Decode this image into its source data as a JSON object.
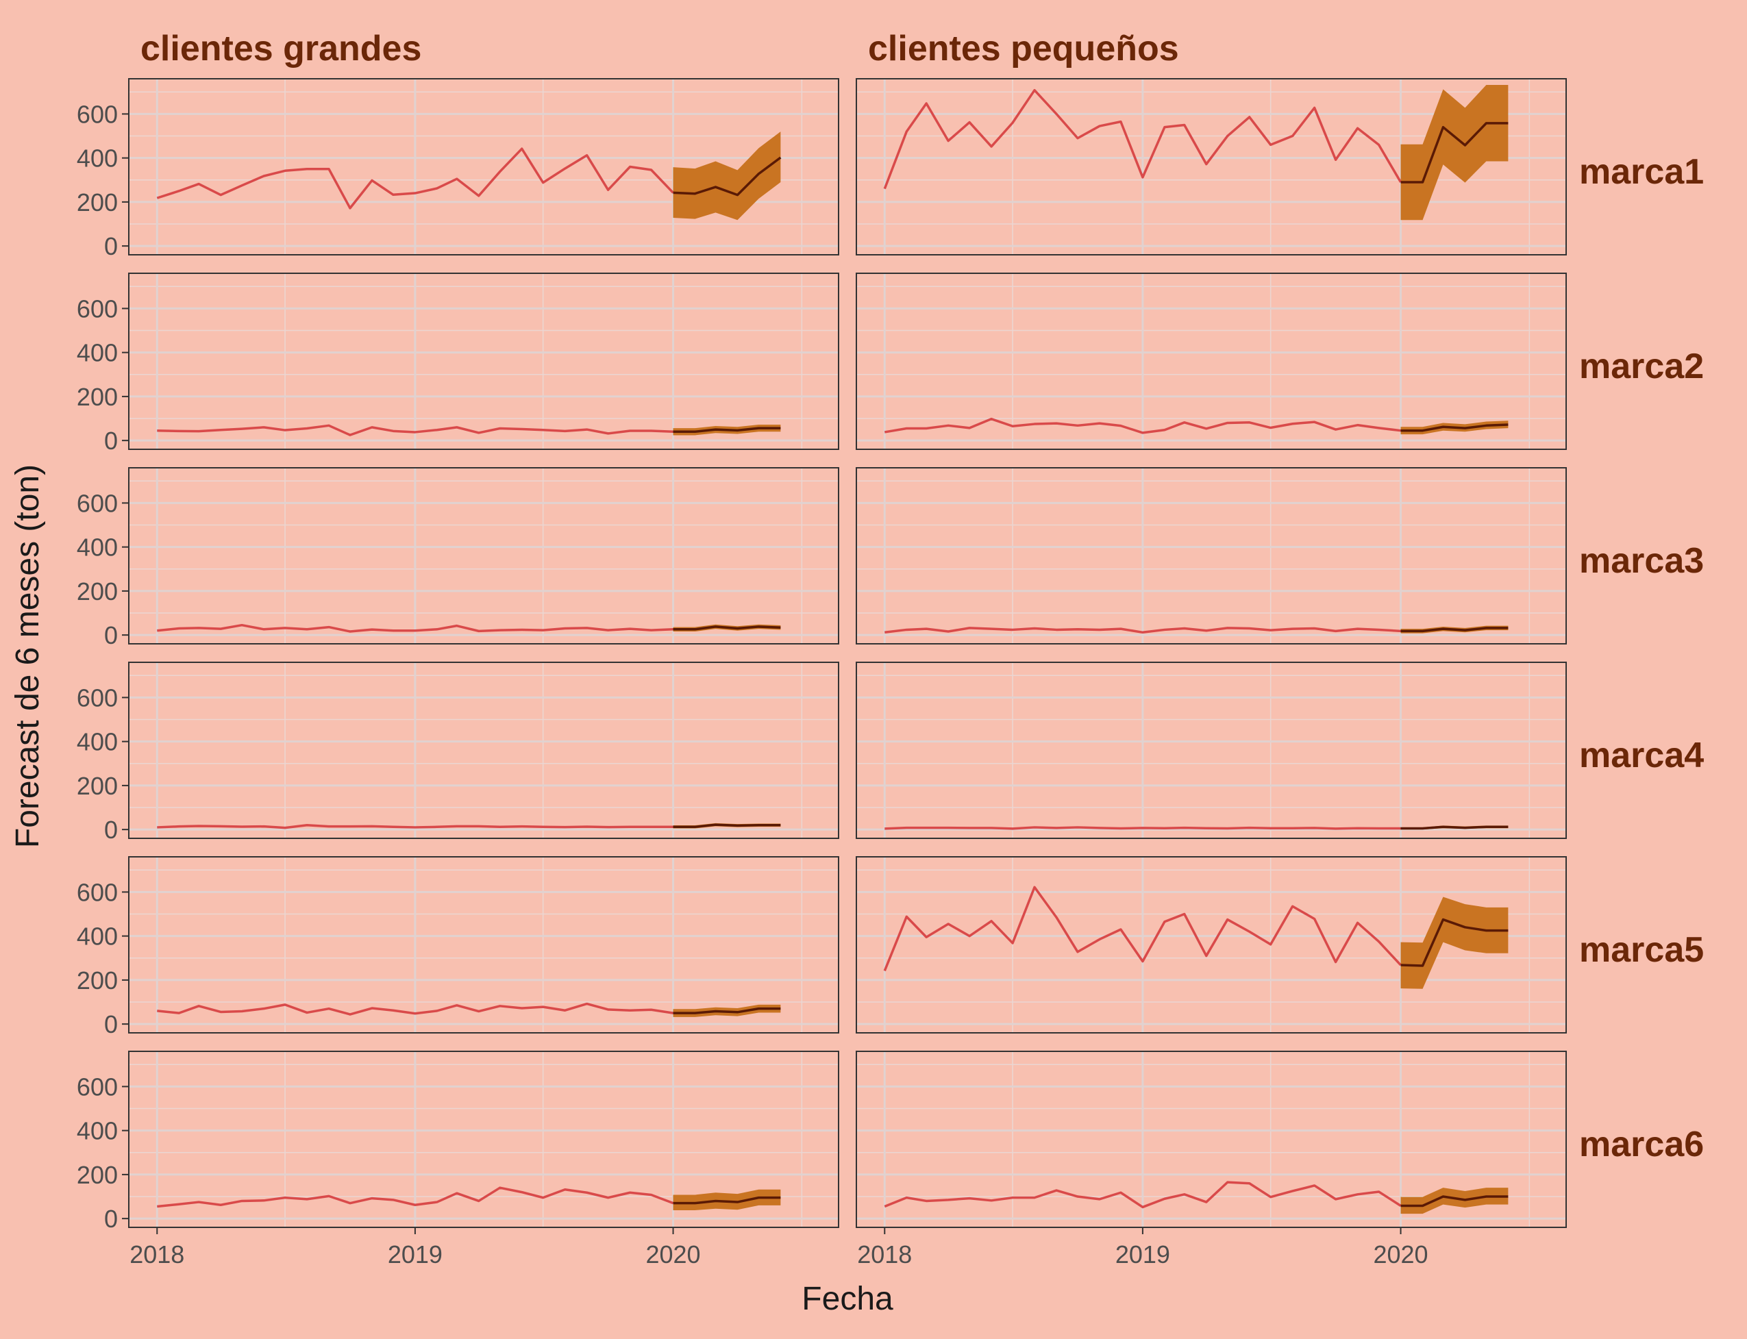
{
  "colors": {
    "background": "#F8C0B0",
    "panel_border": "#333333",
    "grid": "#E1D2D0",
    "grid_minor": "#EBD6D2",
    "history_line": "#D94A4A",
    "forecast_band": "#C97422",
    "forecast_line": "#5A1A05",
    "strip_text": "#6B2708",
    "tick_text": "#4D4D4D",
    "axis_title": "#1A1A1A"
  },
  "chart_data": {
    "type": "line",
    "title": "",
    "xlabel": "Fecha",
    "ylabel": "Forecast de 6 meses (ton)",
    "xlim": [
      "2017-11-22",
      "2020-08-22"
    ],
    "ylim": [
      -40,
      760
    ],
    "x_ticks": [
      "2018",
      "2019",
      "2020"
    ],
    "y_ticks": [
      0,
      200,
      400,
      600
    ],
    "grid": true,
    "legend": "none",
    "facet_cols": [
      "clientes grandes",
      "clientes pequeños"
    ],
    "facet_rows": [
      "marca1",
      "marca2",
      "marca3",
      "marca4",
      "marca5",
      "marca6"
    ],
    "history_dates": [
      "2018-01",
      "2018-02",
      "2018-03",
      "2018-04",
      "2018-05",
      "2018-06",
      "2018-07",
      "2018-08",
      "2018-09",
      "2018-10",
      "2018-11",
      "2018-12",
      "2019-01",
      "2019-02",
      "2019-03",
      "2019-04",
      "2019-05",
      "2019-06",
      "2019-07",
      "2019-08",
      "2019-09",
      "2019-10",
      "2019-11",
      "2019-12",
      "2020-01"
    ],
    "forecast_dates": [
      "2020-01",
      "2020-02",
      "2020-03",
      "2020-04",
      "2020-05",
      "2020-06"
    ],
    "panels": [
      {
        "col": "clientes grandes",
        "row": "marca1",
        "history": [
          218,
          250,
          282,
          232,
          275,
          318,
          342,
          350,
          350,
          172,
          298,
          233,
          240,
          262,
          305,
          228,
          338,
          442,
          288,
          352,
          412,
          255,
          360,
          346,
          242
        ],
        "forecast": [
          242,
          238,
          268,
          232,
          328,
          402
        ],
        "lower": [
          128,
          123,
          152,
          118,
          215,
          290
        ],
        "upper": [
          358,
          352,
          385,
          345,
          445,
          520
        ]
      },
      {
        "col": "clientes pequeños",
        "row": "marca1",
        "history": [
          260,
          520,
          648,
          478,
          562,
          452,
          560,
          708,
          600,
          490,
          545,
          565,
          312,
          540,
          550,
          372,
          500,
          586,
          460,
          500,
          628,
          392,
          535,
          460,
          290
        ],
        "forecast": [
          290,
          290,
          540,
          458,
          558,
          558
        ],
        "lower": [
          118,
          118,
          370,
          288,
          385,
          385
        ],
        "upper": [
          462,
          462,
          712,
          628,
          732,
          732
        ]
      },
      {
        "col": "clientes grandes",
        "row": "marca2",
        "history": [
          45,
          43,
          42,
          48,
          53,
          60,
          47,
          55,
          68,
          25,
          60,
          43,
          38,
          48,
          60,
          35,
          55,
          52,
          48,
          43,
          50,
          32,
          44,
          44,
          40
        ],
        "forecast": [
          40,
          40,
          50,
          46,
          56,
          56
        ],
        "lower": [
          24,
          24,
          34,
          30,
          40,
          40
        ],
        "upper": [
          56,
          56,
          66,
          62,
          72,
          72
        ]
      },
      {
        "col": "clientes pequeños",
        "row": "marca2",
        "history": [
          38,
          55,
          55,
          68,
          57,
          98,
          65,
          75,
          78,
          68,
          78,
          67,
          35,
          48,
          82,
          54,
          80,
          82,
          58,
          76,
          84,
          50,
          70,
          57,
          45
        ],
        "forecast": [
          45,
          45,
          62,
          56,
          68,
          72
        ],
        "lower": [
          28,
          28,
          45,
          40,
          52,
          56
        ],
        "upper": [
          62,
          62,
          80,
          74,
          86,
          90
        ]
      },
      {
        "col": "clientes grandes",
        "row": "marca3",
        "history": [
          20,
          30,
          32,
          28,
          45,
          26,
          32,
          26,
          36,
          16,
          25,
          20,
          20,
          26,
          42,
          18,
          22,
          24,
          22,
          30,
          32,
          22,
          28,
          22,
          26
        ],
        "forecast": [
          26,
          26,
          38,
          30,
          38,
          34
        ],
        "lower": [
          16,
          16,
          28,
          20,
          28,
          24
        ],
        "upper": [
          36,
          36,
          48,
          40,
          48,
          44
        ]
      },
      {
        "col": "clientes pequeños",
        "row": "marca3",
        "history": [
          12,
          24,
          28,
          16,
          32,
          28,
          24,
          30,
          24,
          26,
          24,
          28,
          12,
          24,
          30,
          20,
          32,
          30,
          22,
          28,
          30,
          18,
          28,
          24,
          18
        ],
        "forecast": [
          18,
          18,
          28,
          22,
          32,
          32
        ],
        "lower": [
          8,
          8,
          18,
          12,
          22,
          22
        ],
        "upper": [
          28,
          28,
          38,
          32,
          42,
          42
        ]
      },
      {
        "col": "clientes grandes",
        "row": "marca4",
        "history": [
          10,
          14,
          16,
          15,
          13,
          14,
          8,
          20,
          14,
          14,
          15,
          12,
          10,
          12,
          15,
          15,
          12,
          14,
          12,
          11,
          13,
          11,
          12,
          12,
          12
        ],
        "forecast": [
          12,
          12,
          22,
          18,
          20,
          20
        ],
        "lower": [
          5,
          5,
          15,
          11,
          13,
          13
        ],
        "upper": [
          19,
          19,
          29,
          25,
          27,
          27
        ]
      },
      {
        "col": "clientes pequeños",
        "row": "marca4",
        "history": [
          4,
          8,
          8,
          8,
          7,
          7,
          4,
          10,
          7,
          10,
          7,
          5,
          7,
          6,
          8,
          6,
          5,
          8,
          6,
          6,
          7,
          4,
          6,
          5,
          5
        ],
        "forecast": [
          5,
          5,
          12,
          8,
          12,
          12
        ],
        "lower": [
          0,
          0,
          6,
          3,
          6,
          6
        ],
        "upper": [
          10,
          10,
          18,
          14,
          18,
          18
        ]
      },
      {
        "col": "clientes grandes",
        "row": "marca5",
        "history": [
          60,
          50,
          82,
          55,
          58,
          70,
          88,
          52,
          70,
          44,
          72,
          62,
          48,
          60,
          85,
          58,
          82,
          72,
          78,
          62,
          92,
          66,
          62,
          65,
          50
        ],
        "forecast": [
          50,
          50,
          58,
          54,
          70,
          70
        ],
        "lower": [
          32,
          32,
          40,
          36,
          52,
          52
        ],
        "upper": [
          68,
          68,
          76,
          72,
          88,
          88
        ]
      },
      {
        "col": "clientes pequeños",
        "row": "marca5",
        "history": [
          242,
          488,
          395,
          455,
          400,
          468,
          368,
          622,
          485,
          328,
          385,
          430,
          285,
          465,
          500,
          310,
          475,
          420,
          362,
          535,
          478,
          282,
          460,
          375,
          268
        ],
        "forecast": [
          268,
          265,
          475,
          440,
          425,
          425
        ],
        "lower": [
          162,
          160,
          372,
          335,
          322,
          322
        ],
        "upper": [
          372,
          370,
          578,
          545,
          530,
          530
        ]
      },
      {
        "col": "clientes grandes",
        "row": "marca6",
        "history": [
          55,
          65,
          75,
          62,
          80,
          82,
          95,
          88,
          102,
          70,
          92,
          85,
          62,
          75,
          115,
          80,
          140,
          120,
          95,
          132,
          118,
          95,
          118,
          108,
          70
        ],
        "forecast": [
          70,
          70,
          80,
          75,
          95,
          95
        ],
        "lower": [
          38,
          38,
          45,
          40,
          60,
          60
        ],
        "upper": [
          108,
          108,
          118,
          112,
          132,
          132
        ]
      },
      {
        "col": "clientes pequeños",
        "row": "marca6",
        "history": [
          55,
          95,
          80,
          85,
          92,
          82,
          95,
          95,
          128,
          100,
          88,
          118,
          52,
          90,
          110,
          75,
          165,
          160,
          98,
          125,
          150,
          88,
          110,
          122,
          58
        ],
        "forecast": [
          58,
          58,
          100,
          85,
          100,
          100
        ],
        "lower": [
          22,
          22,
          64,
          50,
          64,
          64
        ],
        "upper": [
          98,
          98,
          140,
          125,
          140,
          140
        ]
      }
    ]
  }
}
